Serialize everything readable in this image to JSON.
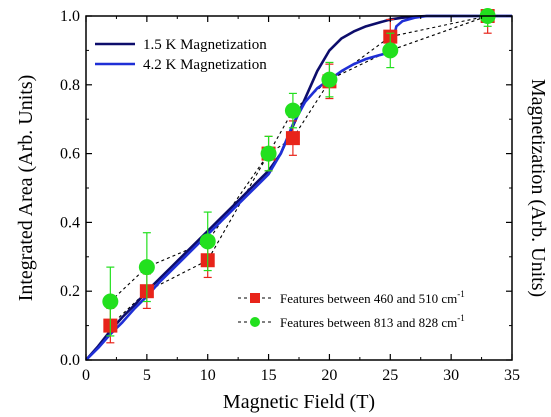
{
  "chart_data": {
    "type": "scatter",
    "xlabel": "Magnetic Field (T)",
    "ylabel_left": "Integrated Area (Arb. Units)",
    "ylabel_right": "Magnetization (Arb. Units)",
    "xlim": [
      0,
      35
    ],
    "ylim": [
      0,
      1.0
    ],
    "x_ticks": [
      0,
      5,
      10,
      15,
      20,
      25,
      30,
      35
    ],
    "y_ticks": [
      0.0,
      0.2,
      0.4,
      0.6,
      0.8,
      1.0
    ],
    "x_tick_labels": [
      "0",
      "5",
      "10",
      "15",
      "20",
      "25",
      "30",
      "35"
    ],
    "y_tick_labels": [
      "0.0",
      "0.2",
      "0.4",
      "0.6",
      "0.8",
      "1.0"
    ],
    "grid": false,
    "series": [
      {
        "name": "1.5 K Magnetization",
        "kind": "line",
        "color": "#0d0d6b",
        "x": [
          0,
          1,
          2,
          3,
          4,
          5,
          6,
          7,
          8,
          9,
          10,
          11,
          12,
          13,
          14,
          15,
          16,
          17,
          18,
          19,
          20,
          21,
          22,
          23,
          24,
          25,
          26,
          27,
          28,
          29,
          30,
          31,
          32,
          33,
          34,
          35
        ],
        "y": [
          0.0,
          0.04,
          0.085,
          0.125,
          0.16,
          0.2,
          0.235,
          0.27,
          0.305,
          0.34,
          0.375,
          0.41,
          0.445,
          0.48,
          0.515,
          0.55,
          0.6,
          0.68,
          0.76,
          0.84,
          0.9,
          0.935,
          0.955,
          0.97,
          0.98,
          0.99,
          0.995,
          0.998,
          1.0,
          1.0,
          1.0,
          1.0,
          1.0,
          1.0,
          1.0,
          1.0
        ]
      },
      {
        "name": "4.2 K Magnetization",
        "kind": "line",
        "color": "#1f2fd6",
        "x": [
          0,
          1,
          2,
          3,
          4,
          5,
          6,
          7,
          8,
          9,
          10,
          11,
          12,
          13,
          14,
          15,
          16,
          17,
          18,
          19,
          20,
          21,
          22,
          23,
          24,
          25,
          25.5,
          26,
          27,
          28,
          29,
          30,
          31,
          32,
          33,
          34,
          35
        ],
        "y": [
          0.0,
          0.035,
          0.075,
          0.11,
          0.15,
          0.185,
          0.225,
          0.26,
          0.295,
          0.33,
          0.365,
          0.4,
          0.435,
          0.47,
          0.505,
          0.54,
          0.6,
          0.685,
          0.75,
          0.79,
          0.815,
          0.84,
          0.86,
          0.875,
          0.885,
          0.895,
          0.97,
          0.985,
          0.995,
          1.0,
          1.0,
          1.0,
          1.0,
          1.0,
          1.0,
          1.0,
          1.0
        ]
      },
      {
        "name": "Features between 460 and 510 cm",
        "name_superscript": "-1",
        "kind": "marker",
        "marker": "square",
        "color": "#e8241a",
        "x": [
          2,
          5,
          10,
          15,
          17,
          20,
          25,
          33
        ],
        "y": [
          0.1,
          0.2,
          0.29,
          0.6,
          0.645,
          0.81,
          0.94,
          1.0
        ],
        "err": [
          0.05,
          0.05,
          0.05,
          0.05,
          0.05,
          0.05,
          0.05,
          0.05
        ]
      },
      {
        "name": "Features between 813 and 828 cm",
        "name_superscript": "-1",
        "kind": "marker",
        "marker": "circle",
        "color": "#22e01e",
        "x": [
          2,
          5,
          10,
          15,
          17,
          20,
          25,
          33
        ],
        "y": [
          0.17,
          0.27,
          0.345,
          0.6,
          0.725,
          0.815,
          0.9,
          1.0
        ],
        "err": [
          0.1,
          0.1,
          0.085,
          0.05,
          0.05,
          0.05,
          0.05,
          0.03
        ]
      }
    ],
    "legend_top": "top-left",
    "legend_bottom": "bottom-right"
  }
}
